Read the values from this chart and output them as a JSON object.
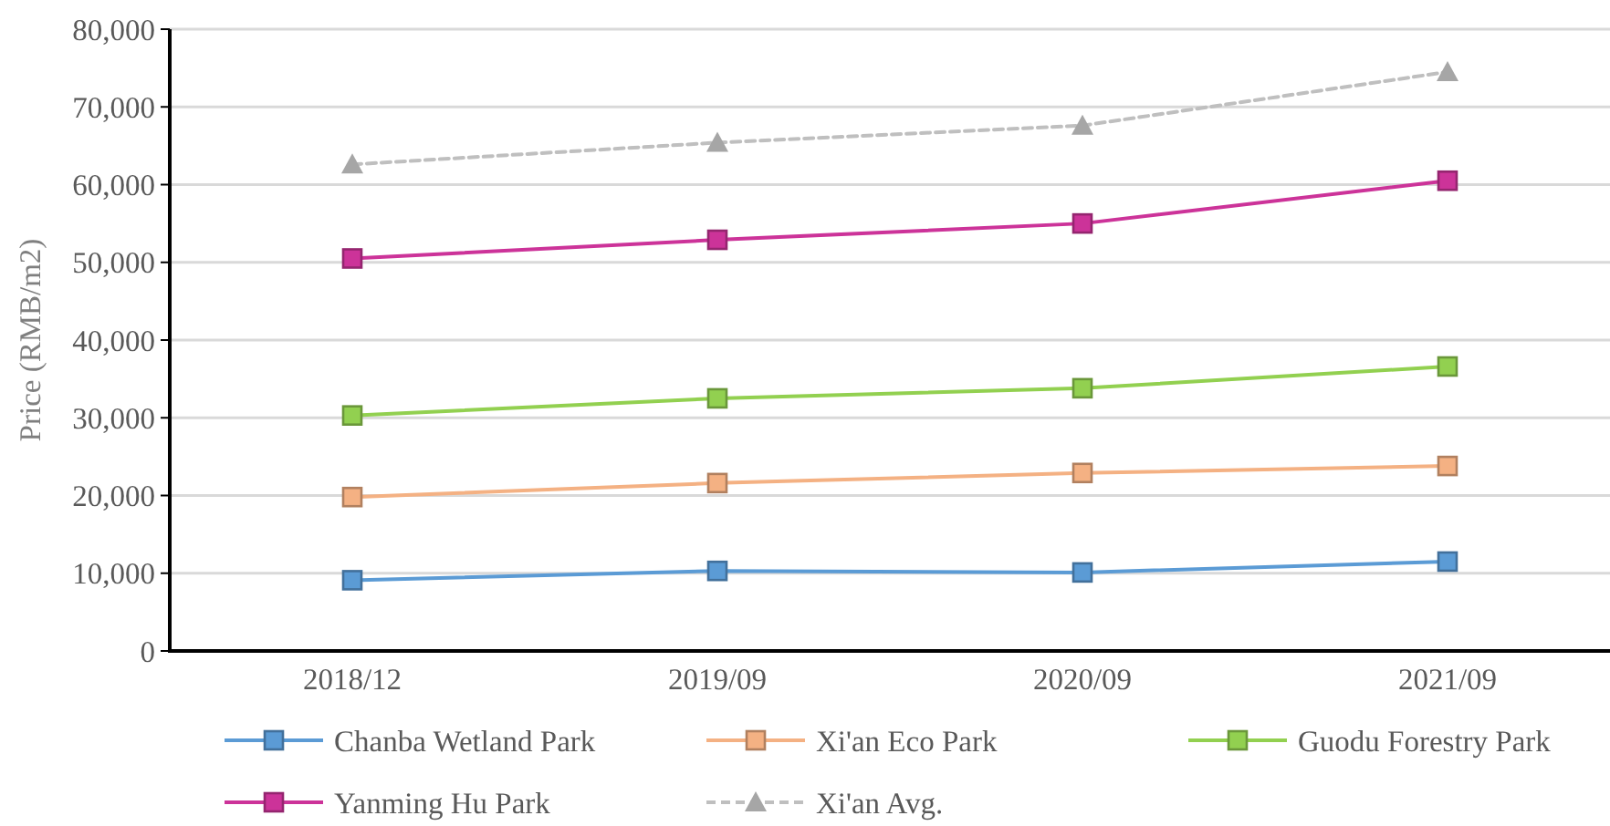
{
  "chart_data": {
    "type": "line",
    "ylabel": "Price (RMB/m2)",
    "categories": [
      "2018/12",
      "2019/09",
      "2020/09",
      "2021/09"
    ],
    "series": [
      {
        "name": "Chanba Wetland Park",
        "color": "#5b9bd5",
        "values": [
          9100,
          10300,
          10100,
          11500
        ]
      },
      {
        "name": "Xi'an Eco Park",
        "color": "#f4b183",
        "values": [
          19800,
          21600,
          22900,
          23800
        ]
      },
      {
        "name": "Guodu Forestry Park",
        "color": "#92d050",
        "values": [
          30300,
          32500,
          33800,
          36600
        ]
      },
      {
        "name": "Yanming Hu Park",
        "color": "#cc3399",
        "values": [
          50500,
          52900,
          55000,
          60500
        ]
      },
      {
        "name": "Xi'an Avg.",
        "color": "#bfbfbf",
        "values": [
          62600,
          65400,
          67600,
          74500
        ],
        "marker": "triangle",
        "line_style": "dashed"
      }
    ],
    "ylim": [
      0,
      80000
    ],
    "yticks": [
      {
        "value": 0,
        "label": "0"
      },
      {
        "value": 10000,
        "label": "10,000"
      },
      {
        "value": 20000,
        "label": "20,000"
      },
      {
        "value": 30000,
        "label": "30,000"
      },
      {
        "value": 40000,
        "label": "40,000"
      },
      {
        "value": 50000,
        "label": "50,000"
      },
      {
        "value": 60000,
        "label": "60,000"
      },
      {
        "value": 70000,
        "label": "70,000"
      },
      {
        "value": 80000,
        "label": "80,000"
      }
    ],
    "grid": "y",
    "legend": "bottom",
    "marker": "square",
    "line_style": "solid"
  }
}
